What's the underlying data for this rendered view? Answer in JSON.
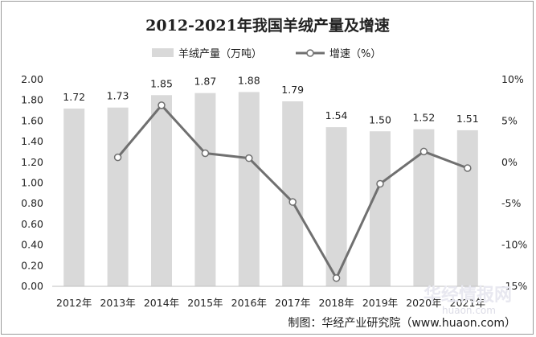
{
  "chart_data": {
    "type": "bar+line",
    "title": "2012-2021年我国羊绒产量及增速",
    "categories": [
      "2012年",
      "2013年",
      "2014年",
      "2015年",
      "2016年",
      "2017年",
      "2018年",
      "2019年",
      "2020年",
      "2021年"
    ],
    "series": [
      {
        "name": "羊绒产量（万吨）",
        "type": "bar",
        "axis": "left",
        "color": "#d9d9d9",
        "values": [
          1.72,
          1.73,
          1.85,
          1.87,
          1.88,
          1.79,
          1.54,
          1.5,
          1.52,
          1.51
        ],
        "labels": [
          "1.72",
          "1.73",
          "1.85",
          "1.87",
          "1.88",
          "1.79",
          "1.54",
          "1.50",
          "1.52",
          "1.51"
        ]
      },
      {
        "name": "增速（%）",
        "type": "line",
        "axis": "right",
        "color": "#707070",
        "values": [
          null,
          0.6,
          6.9,
          1.1,
          0.5,
          -4.8,
          -14.0,
          -2.6,
          1.3,
          -0.7
        ]
      }
    ],
    "y_left": {
      "min": 0,
      "max": 2,
      "step": 0.2,
      "ticks": [
        "0.00",
        "0.20",
        "0.40",
        "0.60",
        "0.80",
        "1.00",
        "1.20",
        "1.40",
        "1.60",
        "1.80",
        "2.00"
      ]
    },
    "y_right": {
      "min": -15,
      "max": 10,
      "step": 5,
      "ticks": [
        "-15%",
        "-10%",
        "-5%",
        "0%",
        "5%",
        "10%"
      ]
    },
    "grid": false,
    "legend": "top"
  },
  "source": "制图：华经产业研究院（www.huaon.com）",
  "watermark": {
    "name": "华经情报网",
    "url": "huaon.com"
  }
}
